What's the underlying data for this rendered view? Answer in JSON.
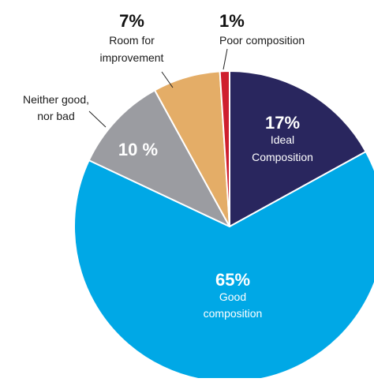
{
  "chart_data": {
    "type": "pie",
    "slices": [
      {
        "key": "ideal",
        "value_label": "17%",
        "label_lines": [
          "Ideal",
          "Composition"
        ],
        "value": 17,
        "color": "#29265e",
        "value_color": "#ffffff",
        "text_color": "#ffffff"
      },
      {
        "key": "good",
        "value_label": "65%",
        "label_lines": [
          "Good",
          "composition"
        ],
        "value": 65,
        "color": "#00a8e6",
        "value_color": "#ffffff",
        "text_color": "#ffffff"
      },
      {
        "key": "neither",
        "value_label": "10 %",
        "label_lines": [
          "Neither good,",
          "nor bad"
        ],
        "value": 10,
        "color": "#9b9ca1",
        "value_color": "#ffffff",
        "text_color": "#1a1a1a"
      },
      {
        "key": "room",
        "value_label": "7%",
        "label_lines": [
          "Room for",
          "improvement"
        ],
        "value": 7,
        "color": "#e4ad67",
        "value_color": "#111111",
        "text_color": "#1a1a1a"
      },
      {
        "key": "poor",
        "value_label": "1%",
        "label_lines": [
          "Poor composition"
        ],
        "value": 1,
        "color": "#cf1f2e",
        "value_color": "#111111",
        "text_color": "#1a1a1a"
      }
    ]
  }
}
